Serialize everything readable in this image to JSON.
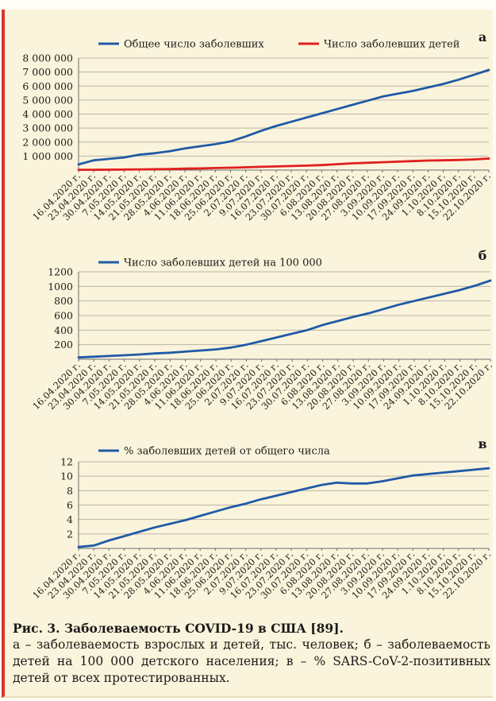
{
  "chart_data": [
    {
      "type": "line",
      "panel_label": "а",
      "x": [
        "16.04.2020 г.",
        "23.04.2020 г.",
        "30.04.2020 г.",
        "7.05.2020 г.",
        "14.05.2020 г.",
        "21.05.2020 г.",
        "28.05.2020 г.",
        "4.06.2020 г.",
        "11.06.2020 г.",
        "18.06.2020 г.",
        "25.06.2020 г.",
        "2.07.2020 г.",
        "9.07.2020 г.",
        "16.07.2020 г.",
        "23.07.2020 г.",
        "30.07.2020 г.",
        "6.08.2020 г.",
        "13.08.2020 г.",
        "20.08.2020 г.",
        "27.08.2020 г.",
        "3.09.2020 г.",
        "10.09.2020 г.",
        "17.09.2020 г.",
        "24.09.2020 г.",
        "1.10.2020 г.",
        "8.10.2020 г.",
        "15.10.2020 г.",
        "22.10.2020 г."
      ],
      "yticks": [
        1000000,
        2000000,
        3000000,
        4000000,
        5000000,
        6000000,
        7000000,
        8000000
      ],
      "ytick_labels": [
        "1 000 000",
        "2 000 000",
        "3 000 000",
        "4 000 000",
        "5 000 000",
        "6 000 000",
        "7 000 000",
        "8 000 000"
      ],
      "ylim": [
        0,
        8000000
      ],
      "legend_position": "top",
      "series": [
        {
          "name": "Общее число заболевших",
          "color": "#1f5aa6",
          "values": [
            400000,
            700000,
            800000,
            900000,
            1100000,
            1200000,
            1350000,
            1550000,
            1700000,
            1850000,
            2050000,
            2400000,
            2800000,
            3150000,
            3450000,
            3750000,
            4050000,
            4350000,
            4650000,
            4950000,
            5250000,
            5450000,
            5650000,
            5900000,
            6150000,
            6450000,
            6800000,
            7150000
          ]
        },
        {
          "name": "Число заболевших детей",
          "color": "#e0201e",
          "values": [
            20000,
            25000,
            30000,
            40000,
            50000,
            60000,
            80000,
            100000,
            120000,
            150000,
            170000,
            200000,
            230000,
            260000,
            290000,
            320000,
            360000,
            420000,
            480000,
            520000,
            560000,
            600000,
            640000,
            680000,
            700000,
            720000,
            760000,
            820000
          ]
        }
      ]
    },
    {
      "type": "line",
      "panel_label": "б",
      "x": [
        "16.04.2020 г.",
        "23.04.2020 г.",
        "30.04.2020 г.",
        "7.05.2020 г.",
        "14.05.2020 г.",
        "21.05.2020 г.",
        "28.05.2020 г.",
        "4.06.2020 г.",
        "11.06.2020 г.",
        "18.06.2020 г.",
        "25.06.2020 г.",
        "2.07.2020 г.",
        "9.07.2020 г.",
        "16.07.2020 г.",
        "23.07.2020 г.",
        "30.07.2020 г.",
        "6.08.2020 г.",
        "13.08.2020 г.",
        "20.08.2020 г.",
        "27.08.2020 г.",
        "3.09.2020 г.",
        "10.09.2020 г.",
        "17.09.2020 г.",
        "24.09.2020 г.",
        "1.10.2020 г.",
        "8.10.2020 г.",
        "15.10.2020 г.",
        "22.10.2020 г."
      ],
      "yticks": [
        200,
        400,
        600,
        800,
        1000,
        1200
      ],
      "ytick_labels": [
        "200",
        "400",
        "600",
        "800",
        "1000",
        "1200"
      ],
      "ylim": [
        0,
        1200
      ],
      "legend_position": "top",
      "series": [
        {
          "name": "Число заболевших детей на 100 000",
          "color": "#1f5aa6",
          "values": [
            25,
            35,
            45,
            55,
            65,
            80,
            90,
            105,
            120,
            135,
            160,
            200,
            250,
            300,
            350,
            400,
            470,
            525,
            580,
            630,
            690,
            750,
            800,
            850,
            900,
            950,
            1010,
            1080
          ]
        }
      ]
    },
    {
      "type": "line",
      "panel_label": "в",
      "x": [
        "16.04.2020 г.",
        "23.04.2020 г.",
        "30.04.2020 г.",
        "7.05.2020 г.",
        "14.05.2020 г.",
        "21.05.2020 г.",
        "28.05.2020 г.",
        "4.06.2020 г.",
        "11.06.2020 г.",
        "18.06.2020 г.",
        "25.06.2020 г.",
        "2.07.2020 г.",
        "9.07.2020 г.",
        "16.07.2020 г.",
        "23.07.2020 г.",
        "30.07.2020 г.",
        "6.08.2020 г.",
        "13.08.2020 г.",
        "20.08.2020 г.",
        "27.08.2020 г.",
        "3.09.2020 г.",
        "10.09.2020 г.",
        "17.09.2020 г.",
        "24.09.2020 г.",
        "1.10.2020 г.",
        "8.10.2020 г.",
        "15.10.2020 г.",
        "22.10.2020 г."
      ],
      "yticks": [
        2,
        4,
        6,
        8,
        10,
        12
      ],
      "ytick_labels": [
        "2",
        "4",
        "6",
        "8",
        "10",
        "12"
      ],
      "ylim": [
        0,
        12
      ],
      "legend_position": "top",
      "series": [
        {
          "name": "% заболевших детей от общего числа",
          "color": "#1f5aa6",
          "values": [
            0.2,
            0.4,
            1.1,
            1.7,
            2.3,
            2.9,
            3.4,
            3.9,
            4.5,
            5.1,
            5.7,
            6.2,
            6.8,
            7.3,
            7.8,
            8.3,
            8.8,
            9.1,
            9.0,
            9.0,
            9.3,
            9.7,
            10.1,
            10.3,
            10.5,
            10.7,
            10.9,
            11.1
          ]
        }
      ]
    }
  ],
  "caption": {
    "title": "Рис. 3. Заболеваемость COVID-19 в США [89].",
    "body": "а – заболеваемость взрослых и детей, тыс. человек; б – заболеваемость детей на 100 000 детского населения; в – % SARS-CoV-2-позитивных детей от всех протестированных."
  }
}
